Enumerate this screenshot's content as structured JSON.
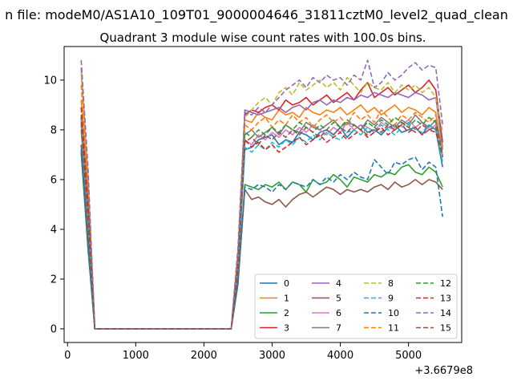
{
  "chart_data": {
    "type": "line",
    "suptitle": "n file: modeM0/AS1A10_109T01_9000004646_31811cztM0_level2_quad_clean",
    "title": "Quadrant 3 module wise count rates with 100.0s bins.",
    "xlabel": "",
    "ylabel": "",
    "x_offset_label": "+3.6679e8",
    "xlim": [
      -50,
      5780
    ],
    "ylim": [
      -0.55,
      11.35
    ],
    "xticks": [
      0,
      1000,
      2000,
      3000,
      4000,
      5000
    ],
    "xtick_labels": [
      "0",
      "1000",
      "2000",
      "3000",
      "4000",
      "5000"
    ],
    "yticks": [
      0,
      2,
      4,
      6,
      8,
      10
    ],
    "ytick_labels": [
      "0",
      "2",
      "4",
      "6",
      "8",
      "10"
    ],
    "grid": false,
    "legend_position": "lower-right",
    "legend_columns": 4,
    "x": [
      200,
      300,
      400,
      500,
      600,
      700,
      800,
      900,
      1000,
      1100,
      1200,
      1300,
      1400,
      1500,
      1600,
      1700,
      1800,
      1900,
      2000,
      2100,
      2200,
      2300,
      2400,
      2500,
      2600,
      2700,
      2800,
      2900,
      3000,
      3100,
      3200,
      3300,
      3400,
      3500,
      3600,
      3700,
      3800,
      3900,
      4000,
      4100,
      4200,
      4300,
      4400,
      4500,
      4600,
      4700,
      4800,
      4900,
      5000,
      5100,
      5200,
      5300,
      5400,
      5500
    ],
    "series": [
      {
        "name": "0",
        "color": "#1f77b4",
        "dash": "solid",
        "values": [
          7.1,
          3.5,
          0,
          0,
          0,
          0,
          0,
          0,
          0,
          0,
          0,
          0,
          0,
          0,
          0,
          0,
          0,
          0,
          0,
          0,
          0,
          0,
          0,
          2.3,
          7.2,
          7.3,
          7.6,
          7.7,
          7.8,
          7.4,
          7.6,
          7.5,
          7.9,
          7.8,
          7.6,
          7.9,
          8.0,
          7.8,
          8.1,
          7.7,
          8.0,
          8.2,
          7.9,
          8.0,
          7.8,
          8.1,
          8.2,
          7.9,
          8.0,
          8.1,
          7.8,
          8.2,
          8.0,
          6.5
        ]
      },
      {
        "name": "1",
        "color": "#ff7f0e",
        "dash": "solid",
        "values": [
          9.2,
          5.5,
          0,
          0,
          0,
          0,
          0,
          0,
          0,
          0,
          0,
          0,
          0,
          0,
          0,
          0,
          0,
          0,
          0,
          0,
          0,
          0,
          0,
          2.8,
          8.4,
          8.3,
          8.7,
          8.5,
          8.4,
          8.8,
          8.6,
          8.7,
          8.5,
          8.9,
          8.7,
          8.6,
          8.8,
          8.7,
          8.9,
          8.6,
          8.8,
          9.0,
          8.7,
          8.9,
          8.6,
          8.8,
          9.0,
          8.7,
          8.9,
          8.8,
          8.6,
          8.9,
          8.7,
          6.9
        ]
      },
      {
        "name": "2",
        "color": "#2ca02c",
        "dash": "solid",
        "values": [
          7.1,
          3.2,
          0,
          0,
          0,
          0,
          0,
          0,
          0,
          0,
          0,
          0,
          0,
          0,
          0,
          0,
          0,
          0,
          0,
          0,
          0,
          0,
          0,
          1.8,
          5.8,
          5.7,
          5.6,
          5.8,
          5.7,
          5.9,
          5.6,
          5.9,
          5.8,
          5.5,
          6.0,
          5.8,
          5.9,
          6.2,
          6.0,
          5.7,
          6.1,
          6.0,
          5.9,
          6.2,
          6.1,
          6.3,
          6.2,
          6.5,
          6.6,
          6.3,
          6.2,
          6.5,
          6.3,
          5.7
        ]
      },
      {
        "name": "3",
        "color": "#d62728",
        "dash": "solid",
        "values": [
          8.5,
          4.8,
          0,
          0,
          0,
          0,
          0,
          0,
          0,
          0,
          0,
          0,
          0,
          0,
          0,
          0,
          0,
          0,
          0,
          0,
          0,
          0,
          0,
          2.6,
          8.6,
          8.8,
          8.7,
          8.9,
          9.0,
          8.8,
          9.2,
          9.0,
          9.1,
          9.3,
          9.0,
          9.2,
          9.4,
          9.1,
          9.3,
          9.5,
          9.2,
          9.6,
          9.9,
          9.3,
          9.5,
          9.7,
          9.4,
          9.6,
          9.8,
          9.5,
          9.7,
          10.0,
          9.6,
          7.5
        ]
      },
      {
        "name": "4",
        "color": "#9467bd",
        "dash": "solid",
        "values": [
          10.5,
          6.0,
          0,
          0,
          0,
          0,
          0,
          0,
          0,
          0,
          0,
          0,
          0,
          0,
          0,
          0,
          0,
          0,
          0,
          0,
          0,
          0,
          0,
          3.0,
          8.8,
          8.7,
          8.6,
          8.7,
          8.8,
          8.9,
          8.7,
          8.9,
          9.0,
          8.8,
          9.1,
          9.2,
          9.0,
          9.2,
          9.1,
          9.3,
          9.2,
          9.4,
          9.3,
          9.5,
          9.4,
          9.3,
          9.5,
          9.4,
          9.3,
          9.5,
          9.4,
          9.2,
          9.3,
          7.3
        ]
      },
      {
        "name": "5",
        "color": "#8c564b",
        "dash": "solid",
        "values": [
          7.4,
          3.6,
          0,
          0,
          0,
          0,
          0,
          0,
          0,
          0,
          0,
          0,
          0,
          0,
          0,
          0,
          0,
          0,
          0,
          0,
          0,
          0,
          0,
          1.9,
          5.6,
          5.2,
          5.3,
          5.1,
          5.0,
          5.2,
          4.9,
          5.2,
          5.4,
          5.5,
          5.3,
          5.5,
          5.7,
          5.6,
          5.4,
          5.6,
          5.5,
          5.6,
          5.5,
          5.7,
          5.8,
          5.6,
          5.9,
          5.7,
          5.8,
          6.0,
          5.8,
          6.0,
          5.9,
          5.6
        ]
      },
      {
        "name": "6",
        "color": "#e377c2",
        "dash": "solid",
        "values": [
          8.2,
          4.5,
          0,
          0,
          0,
          0,
          0,
          0,
          0,
          0,
          0,
          0,
          0,
          0,
          0,
          0,
          0,
          0,
          0,
          0,
          0,
          0,
          0,
          2.4,
          7.6,
          7.4,
          7.8,
          7.6,
          7.9,
          7.7,
          8.0,
          7.8,
          8.1,
          7.9,
          8.2,
          8.0,
          7.8,
          8.1,
          7.9,
          8.3,
          8.0,
          8.2,
          8.1,
          7.9,
          8.3,
          8.1,
          8.0,
          8.2,
          8.4,
          8.1,
          8.3,
          8.0,
          8.2,
          7.0
        ]
      },
      {
        "name": "7",
        "color": "#7f7f7f",
        "dash": "solid",
        "values": [
          8.0,
          4.3,
          0,
          0,
          0,
          0,
          0,
          0,
          0,
          0,
          0,
          0,
          0,
          0,
          0,
          0,
          0,
          0,
          0,
          0,
          0,
          0,
          0,
          2.5,
          7.8,
          8.0,
          7.7,
          7.9,
          8.1,
          7.8,
          8.2,
          8.0,
          7.9,
          8.3,
          8.1,
          8.0,
          8.2,
          8.4,
          8.1,
          8.3,
          8.2,
          8.0,
          8.4,
          8.2,
          8.5,
          8.3,
          8.1,
          8.4,
          8.2,
          8.6,
          8.3,
          8.1,
          8.4,
          7.2
        ]
      },
      {
        "name": "8",
        "color": "#bcbd22",
        "dash": "dashed",
        "values": [
          10.3,
          6.2,
          0,
          0,
          0,
          0,
          0,
          0,
          0,
          0,
          0,
          0,
          0,
          0,
          0,
          0,
          0,
          0,
          0,
          0,
          0,
          0,
          0,
          3.2,
          8.5,
          8.8,
          9.1,
          9.3,
          9.0,
          9.5,
          9.7,
          9.4,
          9.9,
          9.6,
          9.8,
          10.0,
          9.7,
          9.9,
          9.6,
          10.1,
          9.8,
          9.5,
          9.9,
          9.7,
          9.6,
          9.9,
          9.5,
          9.8,
          9.6,
          9.8,
          9.5,
          9.7,
          9.3,
          7.9
        ]
      },
      {
        "name": "9",
        "color": "#17becf",
        "dash": "dashed",
        "values": [
          8.4,
          4.6,
          0,
          0,
          0,
          0,
          0,
          0,
          0,
          0,
          0,
          0,
          0,
          0,
          0,
          0,
          0,
          0,
          0,
          0,
          0,
          0,
          0,
          2.4,
          7.3,
          7.1,
          7.4,
          7.2,
          7.5,
          7.3,
          7.6,
          7.4,
          7.7,
          7.5,
          7.8,
          7.6,
          7.9,
          7.7,
          7.6,
          7.9,
          8.0,
          7.8,
          8.1,
          7.9,
          8.2,
          8.0,
          7.8,
          8.1,
          8.3,
          8.0,
          7.9,
          8.2,
          8.0,
          6.7
        ]
      },
      {
        "name": "10",
        "color": "#1f77b4",
        "dash": "dashed",
        "values": [
          7.2,
          3.3,
          0,
          0,
          0,
          0,
          0,
          0,
          0,
          0,
          0,
          0,
          0,
          0,
          0,
          0,
          0,
          0,
          0,
          0,
          0,
          0,
          0,
          1.9,
          5.7,
          5.6,
          5.8,
          5.7,
          5.5,
          5.8,
          5.6,
          5.9,
          5.8,
          5.7,
          6.0,
          5.8,
          6.1,
          5.9,
          6.2,
          6.0,
          6.3,
          6.1,
          6.0,
          6.8,
          6.5,
          6.2,
          6.7,
          6.6,
          6.8,
          6.9,
          6.4,
          6.7,
          6.5,
          4.5
        ]
      },
      {
        "name": "11",
        "color": "#ff7f0e",
        "dash": "dashed",
        "values": [
          9.8,
          5.8,
          0,
          0,
          0,
          0,
          0,
          0,
          0,
          0,
          0,
          0,
          0,
          0,
          0,
          0,
          0,
          0,
          0,
          0,
          0,
          0,
          0,
          3.0,
          8.2,
          8.0,
          8.3,
          8.5,
          8.1,
          8.4,
          8.2,
          8.6,
          8.3,
          8.5,
          8.1,
          8.4,
          8.6,
          8.3,
          8.5,
          8.2,
          8.7,
          8.4,
          8.6,
          8.3,
          8.8,
          8.5,
          8.2,
          8.6,
          8.4,
          8.7,
          8.5,
          8.3,
          8.6,
          7.2
        ]
      },
      {
        "name": "12",
        "color": "#2ca02c",
        "dash": "dashed",
        "values": [
          8.6,
          4.7,
          0,
          0,
          0,
          0,
          0,
          0,
          0,
          0,
          0,
          0,
          0,
          0,
          0,
          0,
          0,
          0,
          0,
          0,
          0,
          0,
          0,
          2.6,
          7.9,
          7.7,
          8.0,
          7.8,
          8.1,
          7.9,
          8.2,
          8.0,
          8.3,
          8.1,
          7.9,
          8.2,
          8.0,
          8.3,
          8.1,
          8.4,
          8.2,
          8.0,
          8.3,
          8.1,
          8.4,
          8.2,
          8.5,
          8.3,
          8.1,
          8.4,
          8.2,
          8.5,
          8.3,
          7.0
        ]
      },
      {
        "name": "13",
        "color": "#d62728",
        "dash": "dashed",
        "values": [
          8.9,
          5.0,
          0,
          0,
          0,
          0,
          0,
          0,
          0,
          0,
          0,
          0,
          0,
          0,
          0,
          0,
          0,
          0,
          0,
          0,
          0,
          0,
          0,
          2.7,
          7.6,
          7.3,
          7.5,
          7.2,
          7.4,
          7.1,
          7.3,
          7.5,
          7.7,
          7.4,
          7.6,
          7.8,
          7.5,
          7.7,
          7.9,
          7.6,
          7.8,
          8.0,
          7.7,
          7.9,
          8.1,
          7.8,
          8.0,
          8.2,
          7.9,
          8.1,
          7.8,
          8.0,
          7.9,
          7.0
        ]
      },
      {
        "name": "14",
        "color": "#9467bd",
        "dash": "dashed",
        "values": [
          10.8,
          6.5,
          0,
          0,
          0,
          0,
          0,
          0,
          0,
          0,
          0,
          0,
          0,
          0,
          0,
          0,
          0,
          0,
          0,
          0,
          0,
          0,
          0,
          3.3,
          8.7,
          8.6,
          8.9,
          8.7,
          9.0,
          9.3,
          9.6,
          9.8,
          10.0,
          9.7,
          10.1,
          9.9,
          10.2,
          10.0,
          10.1,
          9.8,
          10.2,
          10.0,
          10.8,
          9.7,
          9.9,
          10.3,
          10.0,
          10.2,
          10.5,
          10.7,
          10.4,
          10.6,
          10.5,
          8.2
        ]
      },
      {
        "name": "15",
        "color": "#8c564b",
        "dash": "dashed",
        "values": [
          8.3,
          4.4,
          0,
          0,
          0,
          0,
          0,
          0,
          0,
          0,
          0,
          0,
          0,
          0,
          0,
          0,
          0,
          0,
          0,
          0,
          0,
          0,
          0,
          2.4,
          7.5,
          7.7,
          7.4,
          7.8,
          7.6,
          7.9,
          7.7,
          8.0,
          7.8,
          8.1,
          7.9,
          7.7,
          8.0,
          7.8,
          8.1,
          7.9,
          8.2,
          8.0,
          7.8,
          8.1,
          7.9,
          8.2,
          8.0,
          8.3,
          8.1,
          7.9,
          8.2,
          8.0,
          8.1,
          6.9
        ]
      }
    ]
  }
}
